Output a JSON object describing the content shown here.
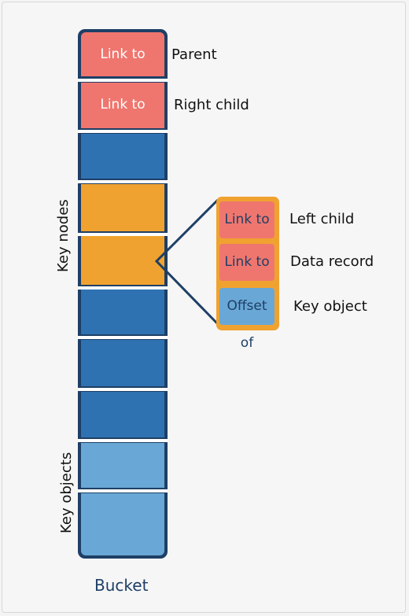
{
  "bucket": {
    "title": "Bucket",
    "cells": [
      {
        "text": "Link to",
        "kind": "pink"
      },
      {
        "text": "Link to",
        "kind": "pink"
      },
      {
        "text": "",
        "kind": "dark-blue"
      },
      {
        "text": "",
        "kind": "orange"
      },
      {
        "text": "",
        "kind": "orange"
      },
      {
        "text": "",
        "kind": "dark-blue"
      },
      {
        "text": "",
        "kind": "dark-blue"
      },
      {
        "text": "",
        "kind": "dark-blue"
      },
      {
        "text": "",
        "kind": "light-blue"
      },
      {
        "text": "",
        "kind": "light-blue"
      }
    ],
    "side_labels": {
      "key_nodes": "Key nodes",
      "key_objects": "Key objects"
    },
    "cell_labels": {
      "parent": "Parent",
      "right_child": "Right child"
    }
  },
  "node_detail": {
    "fields": [
      {
        "text": "Link to",
        "label": "Left child",
        "kind": "pink"
      },
      {
        "text": "Link to",
        "label": "Data record",
        "kind": "pink"
      },
      {
        "text": "Offset of",
        "label": "Key object",
        "kind": "light-blue"
      }
    ]
  },
  "colors": {
    "pink": "#ef766f",
    "dark_blue": "#2f72b2",
    "orange": "#f0a230",
    "light_blue": "#69a8d6",
    "outline": "#1e3f66"
  }
}
